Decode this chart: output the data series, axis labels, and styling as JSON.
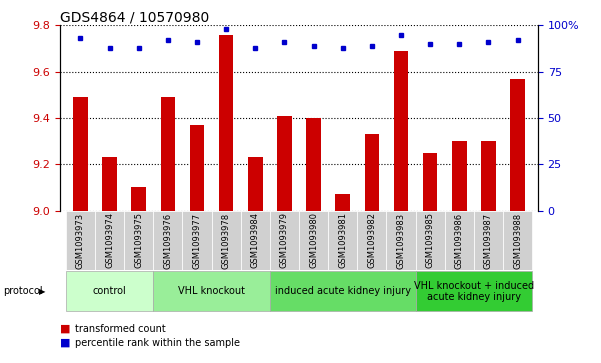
{
  "title": "GDS4864 / 10570980",
  "samples": [
    "GSM1093973",
    "GSM1093974",
    "GSM1093975",
    "GSM1093976",
    "GSM1093977",
    "GSM1093978",
    "GSM1093984",
    "GSM1093979",
    "GSM1093980",
    "GSM1093981",
    "GSM1093982",
    "GSM1093983",
    "GSM1093985",
    "GSM1093986",
    "GSM1093987",
    "GSM1093988"
  ],
  "transformed_counts": [
    9.49,
    9.23,
    9.1,
    9.49,
    9.37,
    9.76,
    9.23,
    9.41,
    9.4,
    9.07,
    9.33,
    9.69,
    9.25,
    9.3,
    9.3,
    9.57
  ],
  "percentile_ranks": [
    93,
    88,
    88,
    92,
    91,
    98,
    88,
    91,
    89,
    88,
    89,
    95,
    90,
    90,
    91,
    92
  ],
  "ylim_left": [
    9.0,
    9.8
  ],
  "ylim_right": [
    0,
    100
  ],
  "yticks_left": [
    9.0,
    9.2,
    9.4,
    9.6,
    9.8
  ],
  "yticks_right": [
    0,
    25,
    50,
    75,
    100
  ],
  "ytick_labels_right": [
    "0",
    "25",
    "50",
    "75",
    "100%"
  ],
  "bar_color": "#CC0000",
  "dot_color": "#0000CC",
  "protocol_groups": [
    {
      "label": "control",
      "indices": [
        0,
        1,
        2
      ],
      "color": "#ccffcc"
    },
    {
      "label": "VHL knockout",
      "indices": [
        3,
        4,
        5,
        6
      ],
      "color": "#99ee99"
    },
    {
      "label": "induced acute kidney injury",
      "indices": [
        7,
        8,
        9,
        10,
        11
      ],
      "color": "#66dd66"
    },
    {
      "label": "VHL knockout + induced\nacute kidney injury",
      "indices": [
        12,
        13,
        14,
        15
      ],
      "color": "#33cc33"
    }
  ],
  "xlabel_protocol": "protocol",
  "legend_bar_label": "transformed count",
  "legend_dot_label": "percentile rank within the sample",
  "title_fontsize": 10,
  "tick_fontsize": 8,
  "bar_width": 0.5,
  "grid_color": "#000000",
  "bg_plot": "#ffffff",
  "bg_xtick": "#d0d0d0",
  "sample_label_fontsize": 6,
  "group_label_fontsize": 7,
  "legend_fontsize": 7
}
